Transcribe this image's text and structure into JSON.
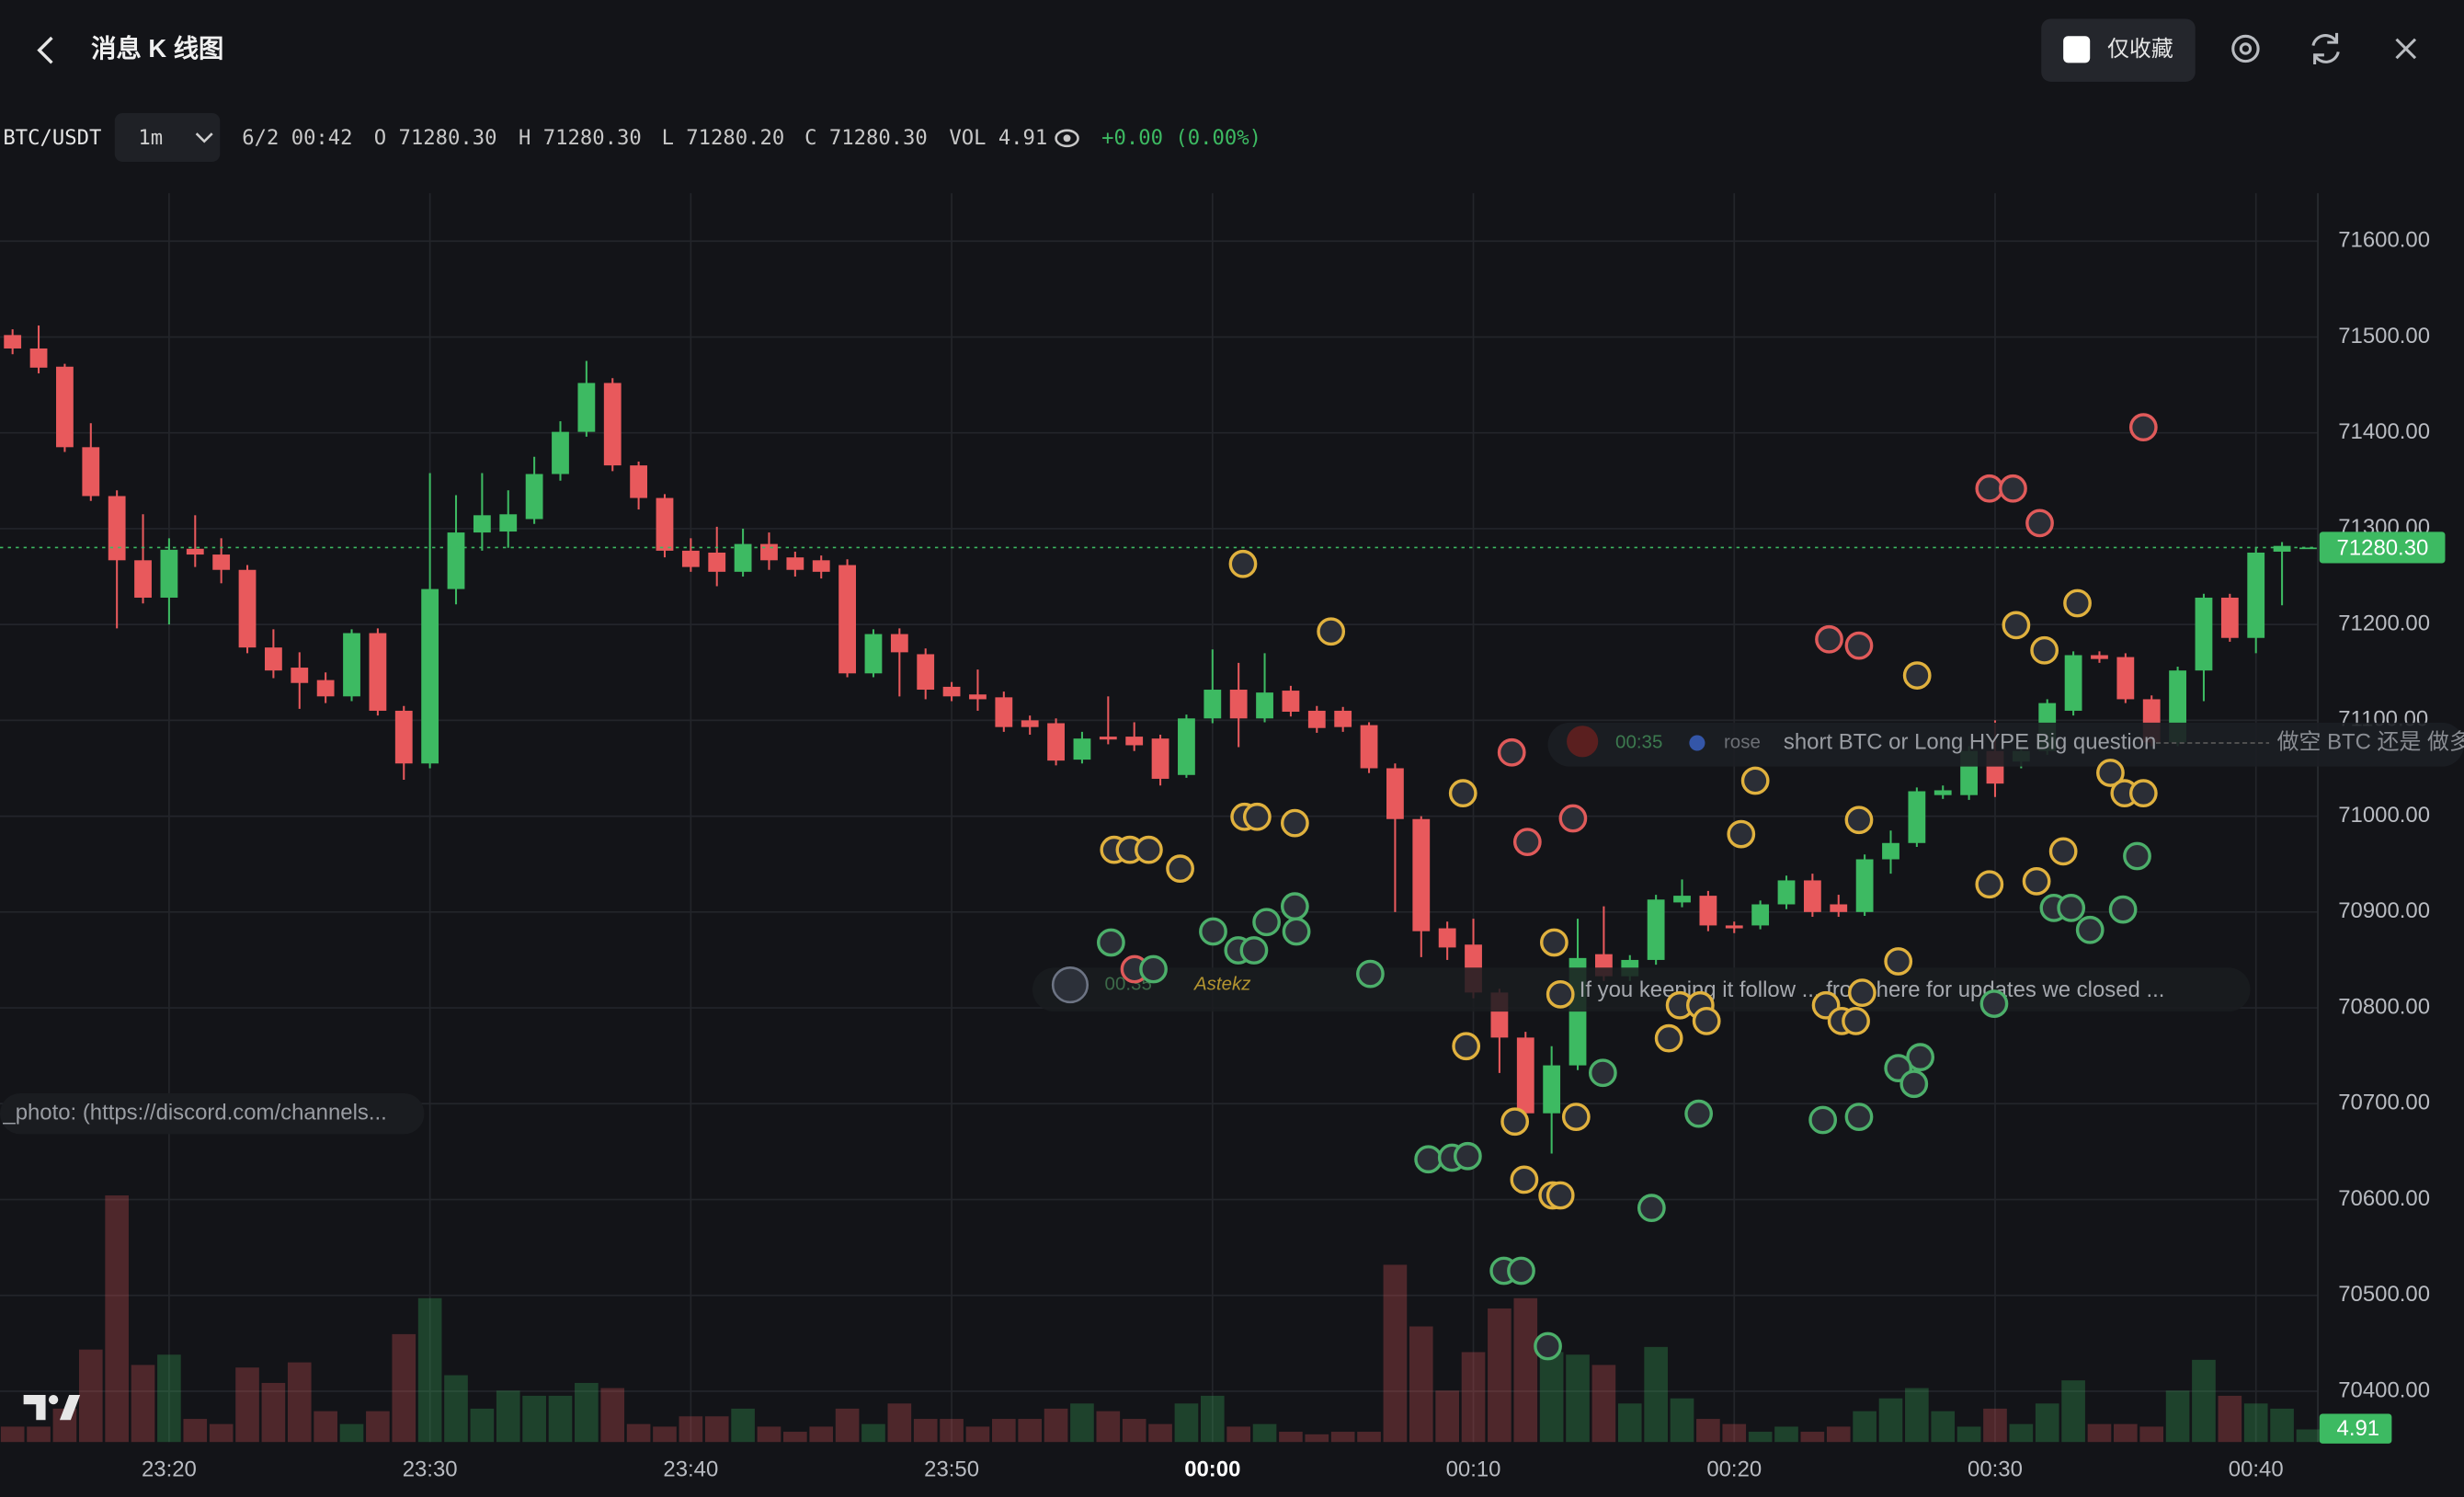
{
  "header": {
    "title": "消息 K 线图",
    "favorites": "仅收藏"
  },
  "legend": {
    "symbol": "BTC/USDT",
    "interval": "1m",
    "time": "6/2 00:42",
    "open": "O 71280.30",
    "high": "H 71280.30",
    "low": "L 71280.20",
    "close": "C 71280.30",
    "volume": "VOL 4.91",
    "change": "+0.00 (0.00%)"
  },
  "messages": [
    {
      "time": "00:35",
      "user": "rose",
      "text": "short BTC or Long HYPE Big question",
      "extra": "做空 BTC 还是 做多"
    },
    {
      "text": "_photo: (https://discord.com/channels..."
    },
    {
      "time": "00:35",
      "user": "Astekz",
      "text": "If you keeping it follow ... from here for updates we closed ..."
    }
  ],
  "chart_data": {
    "type": "candlestick",
    "up_color": "#3dba62",
    "down_color": "#e8595c",
    "grid": true,
    "categories": [
      "23:14",
      "23:15",
      "23:16",
      "23:17",
      "23:18",
      "23:19",
      "23:20",
      "23:21",
      "23:22",
      "23:23",
      "23:24",
      "23:25",
      "23:26",
      "23:27",
      "23:28",
      "23:29",
      "23:30",
      "23:31",
      "23:32",
      "23:33",
      "23:34",
      "23:35",
      "23:36",
      "23:37",
      "23:38",
      "23:39",
      "23:40",
      "23:41",
      "23:42",
      "23:43",
      "23:44",
      "23:45",
      "23:46",
      "23:47",
      "23:48",
      "23:49",
      "23:50",
      "23:51",
      "23:52",
      "23:53",
      "23:54",
      "23:55",
      "23:56",
      "23:57",
      "23:58",
      "23:59",
      "00:00",
      "00:01",
      "00:02",
      "00:03",
      "00:04",
      "00:05",
      "00:06",
      "00:07",
      "00:08",
      "00:09",
      "00:10",
      "00:11",
      "00:12",
      "00:13",
      "00:14",
      "00:15",
      "00:16",
      "00:17",
      "00:18",
      "00:19",
      "00:20",
      "00:21",
      "00:22",
      "00:23",
      "00:24",
      "00:25",
      "00:26",
      "00:27",
      "00:28",
      "00:29",
      "00:30",
      "00:31",
      "00:32",
      "00:33",
      "00:34",
      "00:35",
      "00:36",
      "00:37",
      "00:38",
      "00:39",
      "00:40",
      "00:41",
      "00:42"
    ],
    "open": [
      71502,
      71488,
      71469,
      71385,
      71334,
      71267,
      71228,
      71279,
      71273,
      71257,
      71176,
      71155,
      71142,
      71125,
      71191,
      71110,
      71055,
      71237,
      71296,
      71297,
      71310,
      71357,
      71401,
      71452,
      71366,
      71332,
      71277,
      71275,
      71255,
      71284,
      71270,
      71267,
      71262,
      71149,
      71190,
      71169,
      71135,
      71127,
      71124,
      71100,
      71097,
      71059,
      71083,
      71083,
      71081,
      71043,
      71102,
      71132,
      71102,
      71131,
      71110,
      71110,
      71095,
      71050,
      70997,
      70883,
      70866,
      70816,
      70769,
      70690,
      70740,
      70856,
      70833,
      70850,
      70910,
      70917,
      70886,
      70886,
      70908,
      70933,
      70908,
      70900,
      70955,
      70972,
      71022,
      71022,
      71068,
      71057,
      71068,
      71110,
      71168,
      71166,
      71122,
      71077,
      71152,
      71228,
      71186,
      71276,
      71280.3
    ],
    "high": [
      71508,
      71512,
      71472,
      71410,
      71340,
      71315,
      71290,
      71314,
      71290,
      71262,
      71195,
      71171,
      71150,
      71195,
      71196,
      71115,
      71358,
      71335,
      71358,
      71340,
      71375,
      71412,
      71475,
      71457,
      71370,
      71336,
      71290,
      71302,
      71300,
      71296,
      71276,
      71272,
      71268,
      71195,
      71196,
      71175,
      71140,
      71153,
      71130,
      71105,
      71102,
      71088,
      71125,
      71098,
      71085,
      71106,
      71174,
      71160,
      71170,
      71136,
      71115,
      71114,
      71098,
      71055,
      71000,
      70890,
      70893,
      70820,
      70775,
      70760,
      70893,
      70906,
      70855,
      70918,
      70934,
      70922,
      70890,
      70912,
      70938,
      70940,
      70918,
      70960,
      70985,
      71030,
      71032,
      71073,
      71100,
      71072,
      71122,
      71172,
      71172,
      71170,
      71126,
      71156,
      71232,
      71232,
      71280,
      71286,
      71280.3
    ],
    "low": [
      71482,
      71462,
      71380,
      71329,
      71196,
      71222,
      71200,
      71260,
      71243,
      71170,
      71144,
      71112,
      71118,
      71120,
      71105,
      71038,
      71050,
      71221,
      71277,
      71280,
      71305,
      71350,
      71396,
      71360,
      71320,
      71270,
      71255,
      71240,
      71250,
      71257,
      71250,
      71248,
      71145,
      71145,
      71125,
      71122,
      71120,
      71110,
      71088,
      71085,
      71053,
      71055,
      71075,
      71068,
      71032,
      71040,
      71097,
      71072,
      71098,
      71104,
      71087,
      71088,
      71045,
      70900,
      70853,
      70850,
      70810,
      70732,
      70685,
      70648,
      70735,
      70828,
      70828,
      70845,
      70905,
      70880,
      70878,
      70882,
      70903,
      70895,
      70895,
      70896,
      70940,
      70968,
      71018,
      71017,
      71020,
      71050,
      71064,
      71105,
      71160,
      71118,
      71073,
      71073,
      71120,
      71182,
      71170,
      71220,
      71280.2
    ],
    "close": [
      71488,
      71468,
      71385,
      71334,
      71267,
      71228,
      71278,
      71273,
      71257,
      71176,
      71152,
      71139,
      71125,
      71191,
      71110,
      71055,
      71237,
      71296,
      71314,
      71315,
      71357,
      71401,
      71452,
      71366,
      71332,
      71277,
      71260,
      71255,
      71284,
      71267,
      71257,
      71255,
      71149,
      71190,
      71171,
      71132,
      71125,
      71122,
      71093,
      71093,
      71058,
      71081,
      71080,
      71074,
      71039,
      71102,
      71132,
      71102,
      71129,
      71109,
      71092,
      71093,
      71050,
      70997,
      70880,
      70863,
      70816,
      70769,
      70690,
      70740,
      70852,
      70833,
      70850,
      70913,
      70917,
      70886,
      70883,
      70908,
      70933,
      70900,
      70900,
      70955,
      70972,
      71026,
      71027,
      71068,
      71034,
      71068,
      71118,
      71168,
      71164,
      71122,
      71077,
      71152,
      71228,
      71186,
      71275,
      71282,
      71280.3
    ],
    "volume": [
      6,
      6,
      13,
      36,
      96,
      30,
      34,
      9,
      7,
      29,
      23,
      31,
      12,
      7,
      12,
      42,
      56,
      26,
      13,
      20,
      18,
      18,
      23,
      21,
      7,
      6,
      10,
      10,
      13,
      6,
      4,
      6,
      13,
      7,
      15,
      9,
      9,
      6,
      9,
      9,
      13,
      15,
      12,
      9,
      7,
      15,
      18,
      6,
      7,
      4,
      3,
      4,
      4,
      69,
      45,
      20,
      35,
      52,
      56,
      35,
      34,
      30,
      15,
      37,
      17,
      9,
      7,
      4,
      6,
      4,
      6,
      12,
      17,
      21,
      12,
      6,
      13,
      7,
      15,
      24,
      7,
      7,
      6,
      20,
      32,
      18,
      15,
      13,
      4.91
    ],
    "ylim": [
      70347,
      71650
    ],
    "yticks": [
      {
        "value": 70400,
        "label": "70400.00"
      },
      {
        "value": 70500,
        "label": "70500.00"
      },
      {
        "value": 70600,
        "label": "70600.00"
      },
      {
        "value": 70700,
        "label": "70700.00"
      },
      {
        "value": 70800,
        "label": "70800.00"
      },
      {
        "value": 70900,
        "label": "70900.00"
      },
      {
        "value": 71000,
        "label": "71000.00"
      },
      {
        "value": 71100,
        "label": "71100.00"
      },
      {
        "value": 71200,
        "label": "71200.00"
      },
      {
        "value": 71300,
        "label": "71300.00"
      },
      {
        "value": 71400,
        "label": "71400.00"
      },
      {
        "value": 71500,
        "label": "71500.00"
      },
      {
        "value": 71600,
        "label": "71600.00"
      }
    ],
    "xticks": [
      "23:20",
      "23:30",
      "23:40",
      "23:50",
      "00:00",
      "00:10",
      "00:20",
      "00:30",
      "00:40"
    ],
    "last_price": {
      "value": 71280.3,
      "label": "71280.30"
    }
  }
}
